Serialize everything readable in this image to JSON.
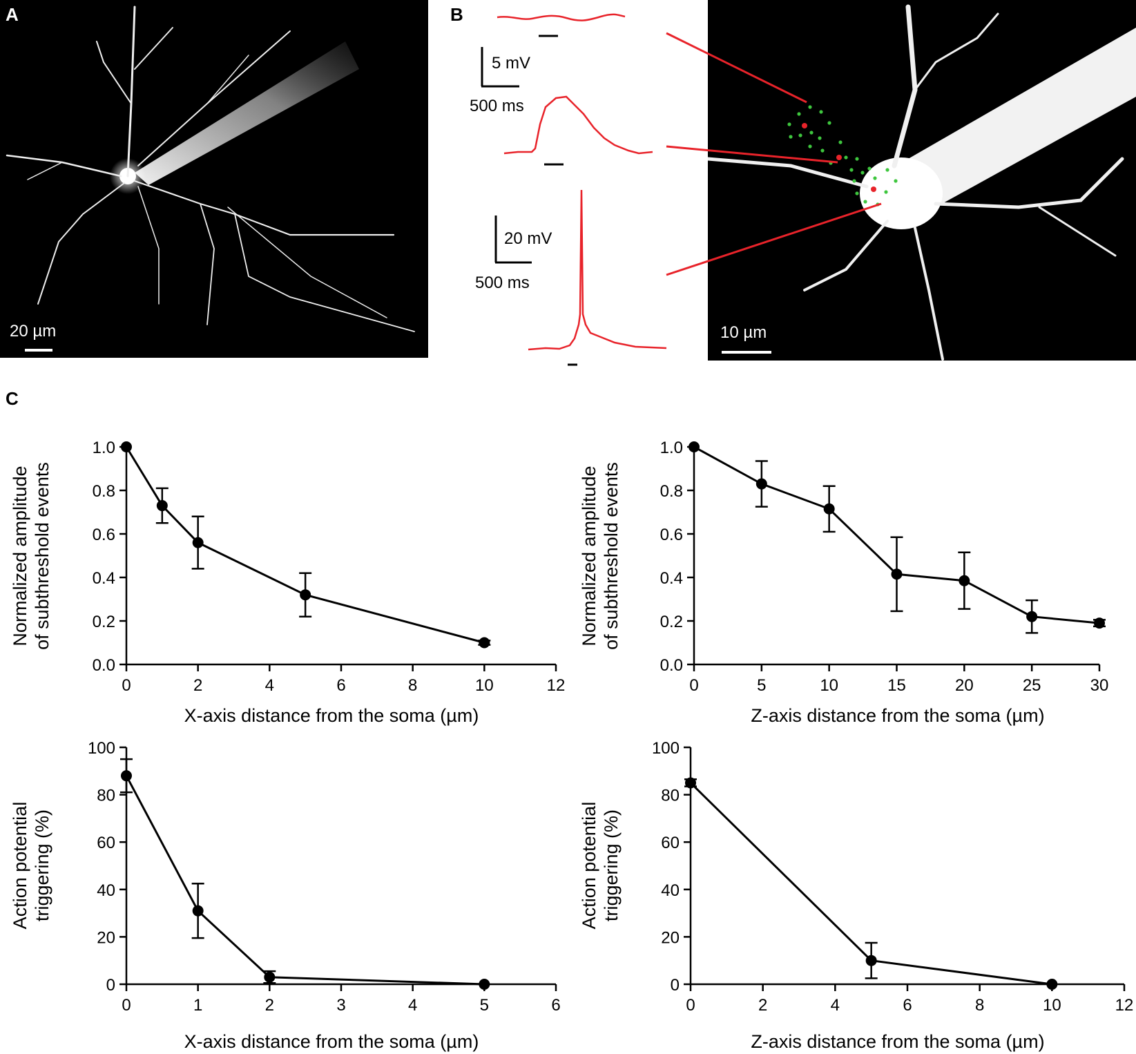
{
  "figure": {
    "panels": {
      "a": {
        "label": "A",
        "scalebar": "20 µm"
      },
      "b": {
        "label": "B",
        "scalebar": "10 µm",
        "scale_top": {
          "voltage": "5 mV",
          "time": "500 ms"
        },
        "scale_bottom": {
          "voltage": "20 mV",
          "time": "500 ms"
        }
      },
      "c": {
        "label": "C"
      }
    },
    "colors": {
      "trace": "#e8232a",
      "stim_green": "#3ec63e",
      "stim_red": "#e8232a",
      "data": "#000000"
    }
  },
  "chart_data": [
    {
      "type": "line",
      "xlabel": "X-axis distance from the soma (µm)",
      "ylabel": [
        "Normalized amplitude",
        "of subthreshold events"
      ],
      "xlim": [
        0,
        12
      ],
      "ylim": [
        0,
        1.0
      ],
      "xticks": [
        "0",
        "2",
        "4",
        "6",
        "8",
        "10",
        "12"
      ],
      "yticks": [
        "0.0",
        "0.2",
        "0.4",
        "0.6",
        "0.8",
        "1.0"
      ],
      "x": [
        0,
        1,
        2,
        5,
        10
      ],
      "y": [
        1.0,
        0.73,
        0.56,
        0.32,
        0.1
      ],
      "err": [
        0.0,
        0.08,
        0.12,
        0.1,
        0.01
      ]
    },
    {
      "type": "line",
      "xlabel": "Z-axis distance from the soma (µm)",
      "ylabel": [
        "Normalized amplitude",
        "of subthreshold events"
      ],
      "xlim": [
        0,
        30
      ],
      "ylim": [
        0,
        1.0
      ],
      "xticks": [
        "0",
        "5",
        "10",
        "15",
        "20",
        "25",
        "30"
      ],
      "yticks": [
        "0.0",
        "0.2",
        "0.4",
        "0.6",
        "0.8",
        "1.0"
      ],
      "x": [
        0,
        5,
        10,
        15,
        20,
        25,
        30
      ],
      "y": [
        1.0,
        0.83,
        0.715,
        0.415,
        0.385,
        0.22,
        0.19
      ],
      "err": [
        0.0,
        0.105,
        0.105,
        0.17,
        0.13,
        0.075,
        0.015
      ]
    },
    {
      "type": "line",
      "xlabel": "X-axis distance from the soma (µm)",
      "ylabel": [
        "Action potential",
        "triggering (%)"
      ],
      "xlim": [
        0,
        6
      ],
      "ylim": [
        0,
        100
      ],
      "xticks": [
        "0",
        "1",
        "2",
        "3",
        "4",
        "5",
        "6"
      ],
      "yticks": [
        "0",
        "20",
        "40",
        "60",
        "80",
        "100"
      ],
      "x": [
        0,
        1,
        2,
        5
      ],
      "y": [
        88,
        31,
        3,
        0
      ],
      "err": [
        7,
        11.5,
        2.5,
        0
      ]
    },
    {
      "type": "line",
      "xlabel": "Z-axis distance from the soma (µm)",
      "ylabel": [
        "Action potential",
        "triggering (%)"
      ],
      "xlim": [
        0,
        12
      ],
      "ylim": [
        0,
        100
      ],
      "xticks": [
        "0",
        "2",
        "4",
        "6",
        "8",
        "10",
        "12"
      ],
      "yticks": [
        "0",
        "20",
        "40",
        "60",
        "80",
        "100"
      ],
      "x": [
        0,
        5,
        10
      ],
      "y": [
        85,
        10,
        0
      ],
      "err": [
        1.5,
        7.5,
        0
      ]
    }
  ]
}
